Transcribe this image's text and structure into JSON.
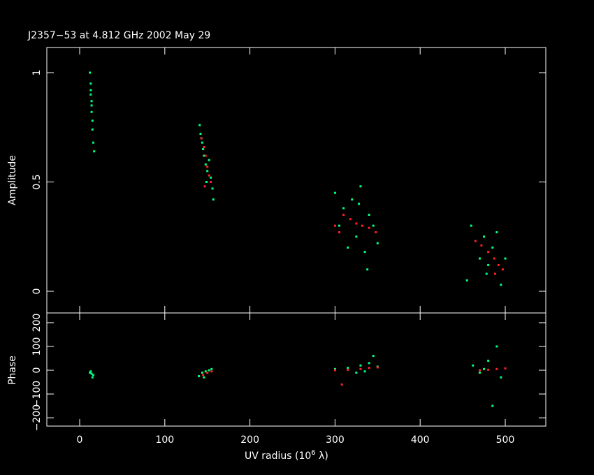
{
  "chart_data": [
    {
      "type": "scatter",
      "title": "J2357−53 at 4.812 GHz 2002 May 29",
      "ylabel": "Amplitude",
      "xlim": [
        -38.6,
        547.6
      ],
      "ylim": [
        -0.099,
        1.115
      ],
      "xticks": [
        0,
        100,
        200,
        300,
        400,
        500
      ],
      "yticks": [
        0,
        0.5,
        1
      ],
      "series": [
        {
          "color": "#00ff80",
          "x": [
            12,
            13,
            13,
            14,
            14,
            15,
            15,
            16,
            17,
            13,
            14,
            141,
            142,
            144,
            145,
            146,
            148,
            150,
            152,
            154,
            156,
            157,
            143,
            149,
            300,
            305,
            310,
            315,
            320,
            325,
            330,
            335,
            340,
            345,
            350,
            338,
            328,
            455,
            460,
            470,
            475,
            480,
            485,
            490,
            495,
            500,
            478
          ],
          "y": [
            1.0,
            0.95,
            0.9,
            0.87,
            0.82,
            0.78,
            0.74,
            0.68,
            0.64,
            0.92,
            0.85,
            0.76,
            0.72,
            0.68,
            0.65,
            0.62,
            0.58,
            0.55,
            0.6,
            0.52,
            0.47,
            0.42,
            0.7,
            0.5,
            0.45,
            0.3,
            0.38,
            0.2,
            0.42,
            0.25,
            0.48,
            0.18,
            0.35,
            0.3,
            0.22,
            0.1,
            0.4,
            0.05,
            0.3,
            0.15,
            0.25,
            0.12,
            0.2,
            0.27,
            0.03,
            0.15,
            0.08
          ]
        },
        {
          "color": "#ff2020",
          "x": [
            143,
            146,
            148,
            150,
            152,
            154,
            147,
            300,
            310,
            318,
            325,
            332,
            340,
            348,
            305,
            465,
            472,
            480,
            487,
            492,
            497,
            488
          ],
          "y": [
            0.7,
            0.66,
            0.62,
            0.57,
            0.53,
            0.5,
            0.48,
            0.3,
            0.35,
            0.33,
            0.31,
            0.3,
            0.29,
            0.27,
            0.27,
            0.23,
            0.21,
            0.18,
            0.15,
            0.12,
            0.1,
            0.08
          ]
        }
      ]
    },
    {
      "type": "scatter",
      "ylabel": "Phase",
      "xlabel": "UV radius  (10",
      "xlabel_sup": "6",
      "xlabel_end": " λ)",
      "xlim": [
        -38.6,
        547.6
      ],
      "ylim": [
        -235,
        241
      ],
      "xticks": [
        0,
        100,
        200,
        300,
        400,
        500
      ],
      "yticks": [
        {
          "value": -200,
          "label": "−200"
        },
        {
          "value": -100,
          "label": "−100"
        },
        0,
        100,
        200
      ],
      "series": [
        {
          "color": "#00ff80",
          "x": [
            12,
            14,
            15,
            13,
            16,
            140,
            144,
            148,
            152,
            155,
            146,
            300,
            315,
            325,
            330,
            340,
            345,
            350,
            335,
            462,
            470,
            480,
            490,
            495,
            485,
            475
          ],
          "y": [
            -10,
            -15,
            -30,
            -5,
            -20,
            -25,
            -10,
            -5,
            0,
            5,
            -30,
            5,
            10,
            -10,
            20,
            30,
            60,
            15,
            -5,
            20,
            -10,
            40,
            100,
            -30,
            -150,
            5
          ]
        },
        {
          "color": "#ff2020",
          "x": [
            145,
            150,
            155,
            300,
            315,
            330,
            340,
            350,
            470,
            480,
            490,
            500,
            308
          ],
          "y": [
            -20,
            -10,
            -5,
            0,
            2,
            5,
            10,
            12,
            0,
            2,
            5,
            8,
            -60
          ]
        }
      ]
    }
  ]
}
